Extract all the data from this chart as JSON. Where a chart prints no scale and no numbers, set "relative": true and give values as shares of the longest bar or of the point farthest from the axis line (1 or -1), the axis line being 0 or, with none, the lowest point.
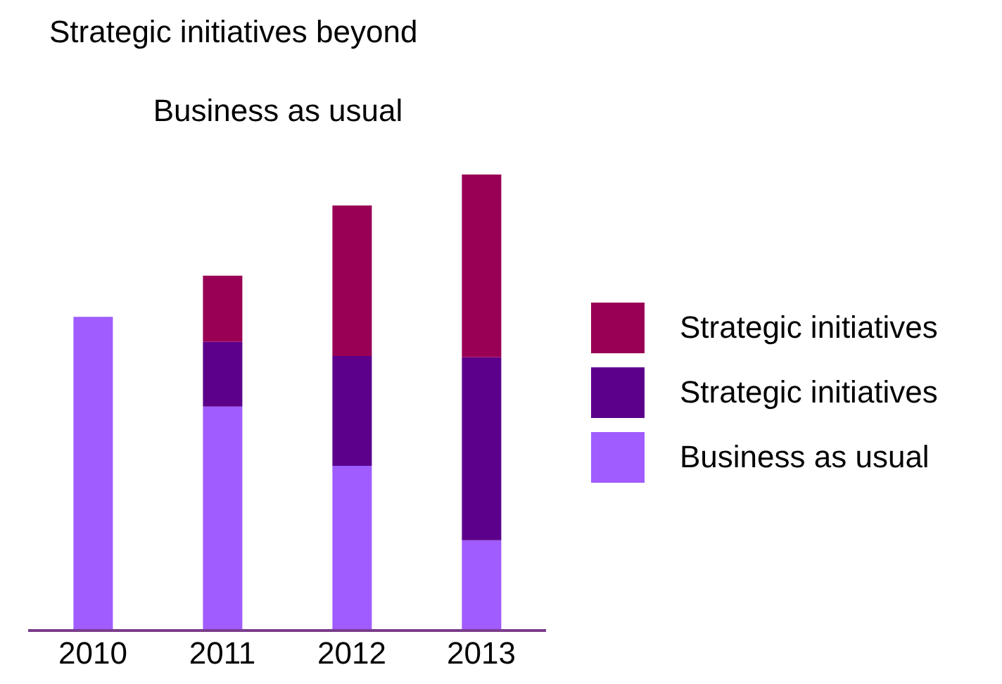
{
  "chart_data": {
    "type": "bar",
    "title": "Strategic initiatives beyond",
    "subtitle": "Business as usual",
    "categories": [
      "2010",
      "2011",
      "2012",
      "2013"
    ],
    "stacked": true,
    "relative": true,
    "legend": "right",
    "series": [
      {
        "name": "Business as usual",
        "color": "#a05cff",
        "values": [
          0.688,
          0.491,
          0.361,
          0.198
        ]
      },
      {
        "name": "Strategic initiatives",
        "color": "#5c008c",
        "values": [
          null,
          0.142,
          0.241,
          0.401
        ]
      },
      {
        "name": "Strategic initiatives",
        "color": "#990055",
        "values": [
          null,
          0.145,
          0.33,
          0.401
        ]
      }
    ]
  }
}
